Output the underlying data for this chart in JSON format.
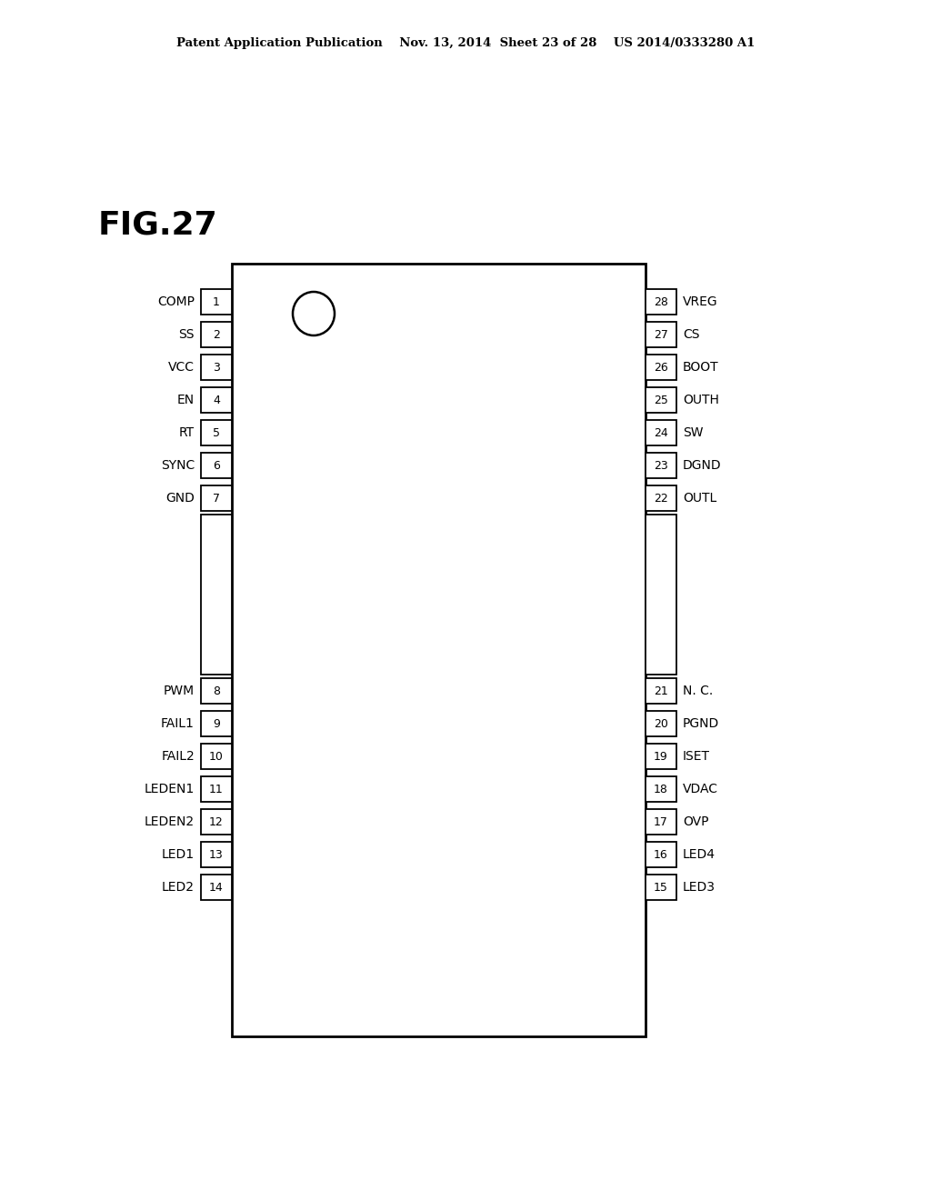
{
  "title": "FIG.27",
  "header": "Patent Application Publication    Nov. 13, 2014  Sheet 23 of 28    US 2014/0333280 A1",
  "background_color": "#ffffff",
  "left_pins_top": [
    {
      "num": 1,
      "label": "COMP"
    },
    {
      "num": 2,
      "label": "SS"
    },
    {
      "num": 3,
      "label": "VCC"
    },
    {
      "num": 4,
      "label": "EN"
    },
    {
      "num": 5,
      "label": "RT"
    },
    {
      "num": 6,
      "label": "SYNC"
    },
    {
      "num": 7,
      "label": "GND"
    }
  ],
  "left_pins_bot": [
    {
      "num": 8,
      "label": "PWM"
    },
    {
      "num": 9,
      "label": "FAIL1"
    },
    {
      "num": 10,
      "label": "FAIL2"
    },
    {
      "num": 11,
      "label": "LEDEN1"
    },
    {
      "num": 12,
      "label": "LEDEN2"
    },
    {
      "num": 13,
      "label": "LED1"
    },
    {
      "num": 14,
      "label": "LED2"
    }
  ],
  "right_pins_top": [
    {
      "num": 28,
      "label": "VREG"
    },
    {
      "num": 27,
      "label": "CS"
    },
    {
      "num": 26,
      "label": "BOOT"
    },
    {
      "num": 25,
      "label": "OUTH"
    },
    {
      "num": 24,
      "label": "SW"
    },
    {
      "num": 23,
      "label": "DGND"
    },
    {
      "num": 22,
      "label": "OUTL"
    }
  ],
  "right_pins_bot": [
    {
      "num": 21,
      "label": "N. C."
    },
    {
      "num": 20,
      "label": "PGND"
    },
    {
      "num": 19,
      "label": "ISET"
    },
    {
      "num": 18,
      "label": "VDAC"
    },
    {
      "num": 17,
      "label": "OVP"
    },
    {
      "num": 16,
      "label": "LED4"
    },
    {
      "num": 15,
      "label": "LED3"
    }
  ]
}
